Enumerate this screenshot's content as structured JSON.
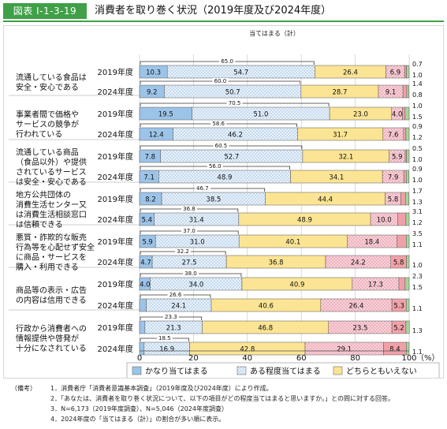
{
  "figure": {
    "label": "図表 Ⅰ-1-3-19",
    "title": "消費者を取り巻く状況（2019年度及び2024年度）"
  },
  "chart_data": {
    "type": "bar",
    "orientation": "horizontal",
    "stacked": true,
    "xlim": [
      0,
      100
    ],
    "x_ticks": [
      "0",
      "20",
      "40",
      "60",
      "80",
      "100"
    ],
    "x_unit": "（%）",
    "total_label": "当てはまる（計）",
    "categories": [
      {
        "label": [
          "流通している食品は",
          "安全・安心である"
        ],
        "rows": [
          {
            "year": "2019年度",
            "values": [
              10.3,
              54.7,
              26.4,
              6.9,
              0.7,
              1.0
            ],
            "total": "65.0",
            "outside": [
              "0.7",
              "1.0"
            ]
          },
          {
            "year": "2024年度",
            "values": [
              9.2,
              50.7,
              28.7,
              9.1,
              1.4,
              0.8
            ],
            "total": "60.0",
            "outside": [
              "1.4",
              "0.8"
            ]
          }
        ]
      },
      {
        "label": [
          "事業者間で価格や",
          "サービスの競争が",
          "行われている"
        ],
        "rows": [
          {
            "year": "2019年度",
            "values": [
              19.5,
              51.0,
              23.0,
              4.0,
              1.0,
              1.5
            ],
            "total": "70.5",
            "outside": [
              "1.0",
              "1.5"
            ]
          },
          {
            "year": "2024年度",
            "values": [
              12.4,
              46.2,
              31.7,
              7.6,
              0.9,
              1.2
            ],
            "total": "58.6",
            "outside": [
              "0.9",
              "1.2"
            ]
          }
        ]
      },
      {
        "label": [
          "流通している商品",
          "（食品以外）や提供",
          "されているサービス",
          "は安全・安心である"
        ],
        "rows": [
          {
            "year": "2019年度",
            "values": [
              7.8,
              52.7,
              32.1,
              5.9,
              0.5,
              1.0
            ],
            "total": "60.5",
            "outside": [
              "0.5",
              "1.0"
            ]
          },
          {
            "year": "2024年度",
            "values": [
              7.1,
              48.9,
              34.1,
              7.9,
              0.9,
              1.0
            ],
            "total": "56.0",
            "outside": [
              "0.9",
              "1.0"
            ]
          }
        ]
      },
      {
        "label": [
          "地方公共団体の",
          "消費生活センター又",
          "は消費生活相談窓口",
          "は信頼できる"
        ],
        "rows": [
          {
            "year": "2019年度",
            "values": [
              8.2,
              38.5,
              44.4,
              5.8,
              1.7,
              1.3
            ],
            "total": "46.7",
            "outside": [
              "1.7",
              "1.3"
            ]
          },
          {
            "year": "2024年度",
            "values": [
              5.4,
              31.4,
              48.9,
              10.0,
              3.1,
              1.2
            ],
            "total": "36.8",
            "outside": [
              "3.1",
              "1.2"
            ]
          }
        ]
      },
      {
        "label": [
          "悪質・詐欺的な販売",
          "行為等を心配せず安全",
          "に商品・サービスを",
          "購入・利用できる"
        ],
        "rows": [
          {
            "year": "2019年度",
            "values": [
              5.9,
              31.0,
              40.1,
              18.4,
              3.5,
              1.1
            ],
            "total": "37.0",
            "outside": [
              "3.5",
              "1.1"
            ]
          },
          {
            "year": "2024年度",
            "values": [
              4.7,
              27.5,
              36.8,
              24.2,
              5.8,
              1.0
            ],
            "total": "32.2",
            "outside": [
              "",
              "1.0"
            ]
          }
        ]
      },
      {
        "label": [
          "商品等の表示・広告",
          "の内容は信用できる"
        ],
        "rows": [
          {
            "year": "2019年度",
            "values": [
              4.0,
              34.0,
              40.9,
              17.3,
              2.3,
              1.5
            ],
            "total": "38.0",
            "outside": [
              "2.3",
              "1.5"
            ]
          },
          {
            "year": "2024年度",
            "values": [
              2.5,
              24.1,
              40.6,
              26.4,
              5.3,
              1.1
            ],
            "total": "26.6",
            "outside": [
              "",
              "1.1"
            ]
          }
        ]
      },
      {
        "label": [
          "行政から消費者への",
          "情報提供や啓発が",
          "十分になされている"
        ],
        "rows": [
          {
            "year": "2019年度",
            "values": [
              2.0,
              21.3,
              46.8,
              23.5,
              5.2,
              1.3
            ],
            "total": "23.3",
            "outside": [
              "",
              "1.3"
            ]
          },
          {
            "year": "2024年度",
            "values": [
              1.7,
              16.9,
              42.8,
              29.1,
              8.4,
              1.1
            ],
            "total": "18.5",
            "outside": [
              "",
              "1.1"
            ]
          }
        ]
      }
    ],
    "series": [
      {
        "name": "かなり当てはまる",
        "color": "#9cc4e8",
        "pattern": "solid"
      },
      {
        "name": "ある程度当てはまる",
        "color": "#e9f2fb",
        "pattern": "dots"
      },
      {
        "name": "どちらともいえない",
        "color": "#fbe493",
        "pattern": "solid"
      },
      {
        "name": "あまり当てはまらない",
        "color": "#f8d3da",
        "pattern": "dots"
      },
      {
        "name": "ほとんど・全く当てはまらない",
        "color": "#f0a1a8",
        "pattern": "solid"
      },
      {
        "name": "無回答",
        "color": "#a9d49b",
        "pattern": "solid"
      }
    ]
  },
  "notes": {
    "head": "（備考）",
    "lines": [
      "1．消費者庁「消費者意識基本調査」（2019年度及び2024年度）により作成。",
      "2．「あなたは、消費者を取り巻く状況について、以下の項目がどの程度当てはまると思いますか。」との問に対する回答。",
      "3．N=6,173（2019年度調査）、N=5,046（2024年度調査）",
      "4．2024年度の「当てはまる（計）」の割合が多い順に表示。"
    ]
  }
}
